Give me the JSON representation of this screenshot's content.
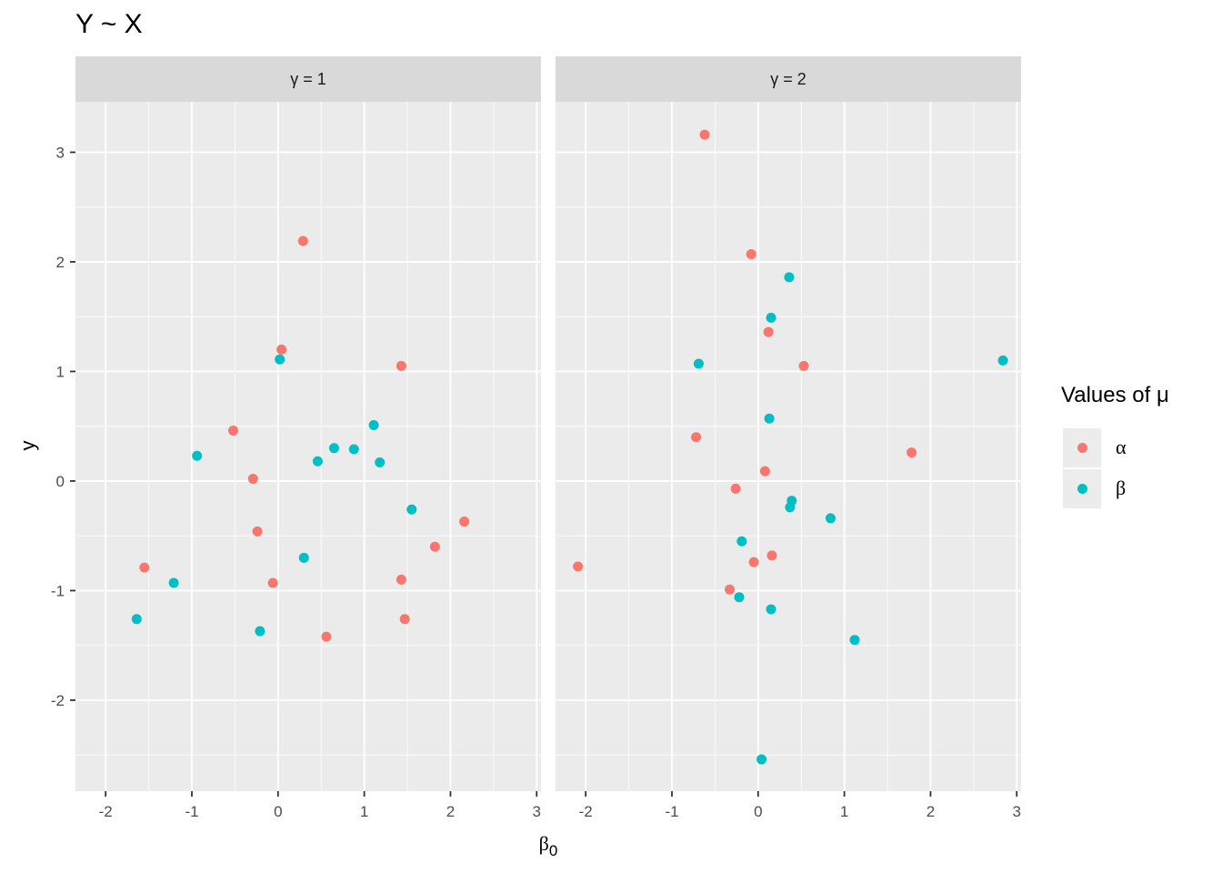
{
  "chart_data": {
    "type": "scatter",
    "title": "Y ~ X",
    "xlabel": "β0",
    "ylabel": "y",
    "xlim": [
      -2.35,
      3.05
    ],
    "ylim": [
      -2.83,
      3.46
    ],
    "x_ticks": [
      -2,
      -1,
      0,
      1,
      2,
      3
    ],
    "y_ticks": [
      -2,
      -1,
      0,
      1,
      2,
      3
    ],
    "grid": true,
    "legend": {
      "title": "Values of μ",
      "position": "right",
      "entries": [
        {
          "label": "α",
          "color": "#F8766D"
        },
        {
          "label": "β",
          "color": "#00BFC4"
        }
      ]
    },
    "facets": [
      {
        "label": "γ = 1",
        "series": [
          {
            "name": "α",
            "color": "#F8766D",
            "points": [
              [
                0.29,
                2.19
              ],
              [
                0.04,
                1.2
              ],
              [
                1.43,
                1.05
              ],
              [
                -0.52,
                0.46
              ],
              [
                -0.29,
                0.02
              ],
              [
                -0.24,
                -0.46
              ],
              [
                -0.06,
                -0.93
              ],
              [
                -1.55,
                -0.79
              ],
              [
                1.43,
                -0.9
              ],
              [
                1.47,
                -1.26
              ],
              [
                0.56,
                -1.42
              ],
              [
                1.82,
                -0.6
              ],
              [
                2.16,
                -0.37
              ]
            ]
          },
          {
            "name": "β",
            "color": "#00BFC4",
            "points": [
              [
                0.02,
                1.11
              ],
              [
                -0.94,
                0.23
              ],
              [
                1.11,
                0.51
              ],
              [
                0.65,
                0.3
              ],
              [
                0.88,
                0.29
              ],
              [
                0.46,
                0.18
              ],
              [
                1.18,
                0.17
              ],
              [
                1.55,
                -0.26
              ],
              [
                0.3,
                -0.7
              ],
              [
                -1.21,
                -0.93
              ],
              [
                -1.64,
                -1.26
              ],
              [
                -0.21,
                -1.37
              ]
            ]
          }
        ]
      },
      {
        "label": "γ = 2",
        "series": [
          {
            "name": "α",
            "color": "#F8766D",
            "points": [
              [
                -0.62,
                3.16
              ],
              [
                -0.08,
                2.07
              ],
              [
                0.12,
                1.36
              ],
              [
                0.53,
                1.05
              ],
              [
                -0.72,
                0.4
              ],
              [
                1.78,
                0.26
              ],
              [
                0.08,
                0.09
              ],
              [
                -0.26,
                -0.07
              ],
              [
                0.16,
                -0.68
              ],
              [
                -0.05,
                -0.74
              ],
              [
                -0.33,
                -0.99
              ],
              [
                -2.09,
                -0.78
              ]
            ]
          },
          {
            "name": "β",
            "color": "#00BFC4",
            "points": [
              [
                0.36,
                1.86
              ],
              [
                0.15,
                1.49
              ],
              [
                -0.69,
                1.07
              ],
              [
                2.84,
                1.1
              ],
              [
                0.13,
                0.57
              ],
              [
                0.39,
                -0.18
              ],
              [
                0.37,
                -0.24
              ],
              [
                0.84,
                -0.34
              ],
              [
                -0.19,
                -0.55
              ],
              [
                -0.22,
                -1.06
              ],
              [
                0.15,
                -1.17
              ],
              [
                1.12,
                -1.45
              ],
              [
                0.04,
                -2.54
              ]
            ]
          }
        ]
      }
    ]
  }
}
